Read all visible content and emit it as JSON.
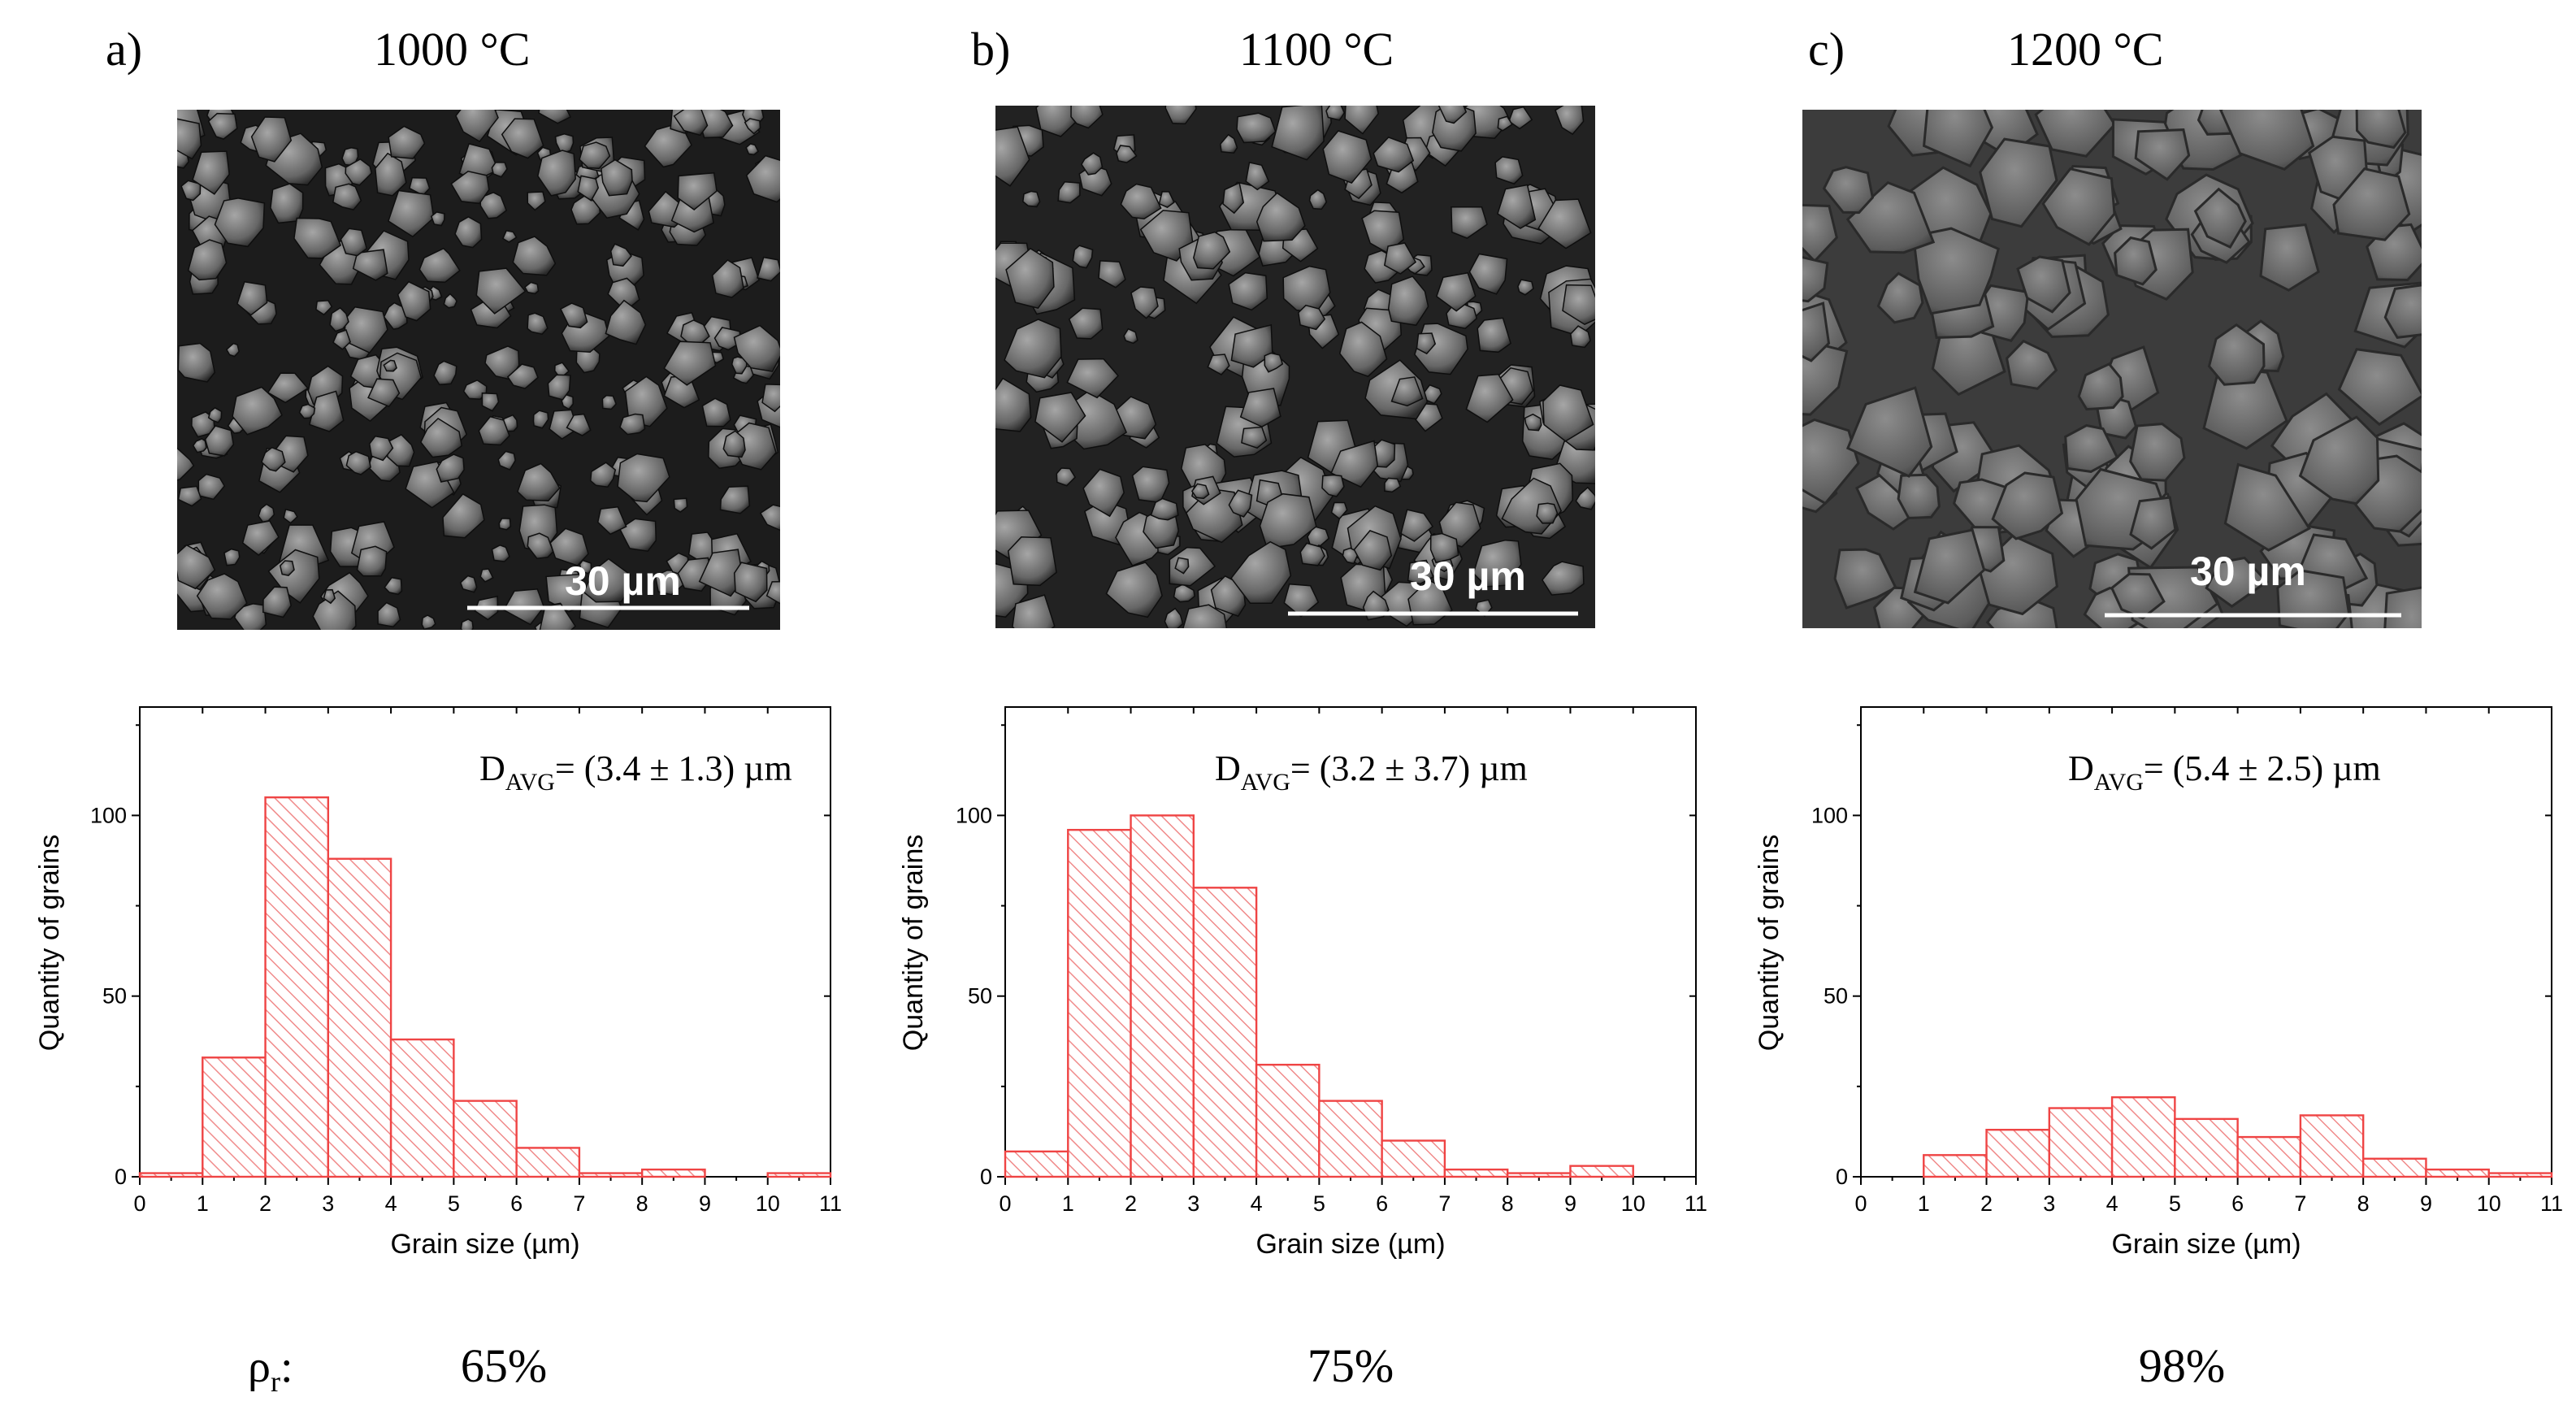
{
  "figure": {
    "density_symbol": "ρ",
    "density_subscript": "r",
    "density_suffix": ":"
  },
  "chart_data": [
    {
      "type": "bar",
      "panel": "a)",
      "title": "1000 °C",
      "sem_scale_bar": "30 µm",
      "xlabel": "Grain size (µm)",
      "ylabel": "Quantity of grains",
      "xlim": [
        0,
        11
      ],
      "ylim": [
        0,
        130
      ],
      "xticks": [
        0,
        1,
        2,
        3,
        4,
        5,
        6,
        7,
        8,
        9,
        10,
        11
      ],
      "yticks": [
        0,
        50,
        100
      ],
      "bin_edges": [
        0,
        1,
        2,
        3,
        4,
        5,
        6,
        7,
        8,
        9,
        10,
        11
      ],
      "values": [
        1,
        33,
        105,
        88,
        38,
        21,
        8,
        1,
        2,
        0,
        1
      ],
      "davg_label": "D",
      "davg_sub": "AVG",
      "davg_value": "= (3.4 ± 1.3) µm",
      "relative_density": "65%"
    },
    {
      "type": "bar",
      "panel": "b)",
      "title": "1100 °C",
      "sem_scale_bar": "30 µm",
      "xlabel": "Grain size (µm)",
      "ylabel": "Quantity of grains",
      "xlim": [
        0,
        11
      ],
      "ylim": [
        0,
        130
      ],
      "xticks": [
        0,
        1,
        2,
        3,
        4,
        5,
        6,
        7,
        8,
        9,
        10,
        11
      ],
      "yticks": [
        0,
        50,
        100
      ],
      "bin_edges": [
        0,
        1,
        2,
        3,
        4,
        5,
        6,
        7,
        8,
        9,
        10
      ],
      "values": [
        7,
        96,
        100,
        80,
        31,
        21,
        10,
        2,
        1,
        3
      ],
      "davg_label": "D",
      "davg_sub": "AVG",
      "davg_value": "= (3.2 ± 3.7) µm",
      "relative_density": "75%"
    },
    {
      "type": "bar",
      "panel": "c)",
      "title": "1200 °C",
      "sem_scale_bar": "30 µm",
      "xlabel": "Grain size (µm)",
      "ylabel": "Quantity of grains",
      "xlim": [
        0,
        11
      ],
      "ylim": [
        0,
        130
      ],
      "xticks": [
        0,
        1,
        2,
        3,
        4,
        5,
        6,
        7,
        8,
        9,
        10,
        11
      ],
      "yticks": [
        0,
        50,
        100
      ],
      "bin_edges": [
        1,
        2,
        3,
        4,
        5,
        6,
        7,
        8,
        9,
        10,
        11
      ],
      "values": [
        6,
        13,
        19,
        22,
        16,
        11,
        17,
        5,
        2,
        1
      ],
      "davg_label": "D",
      "davg_sub": "AVG",
      "davg_value": "= (5.4 ± 2.5) µm",
      "relative_density": "98%"
    }
  ],
  "colors": {
    "bar_stroke": "#ef4444",
    "hatch": "#f08a8a",
    "sem_dark": "#1f1f1f",
    "sem_mid": "#5a5a5a",
    "sem_light": "#9a9a9a"
  }
}
